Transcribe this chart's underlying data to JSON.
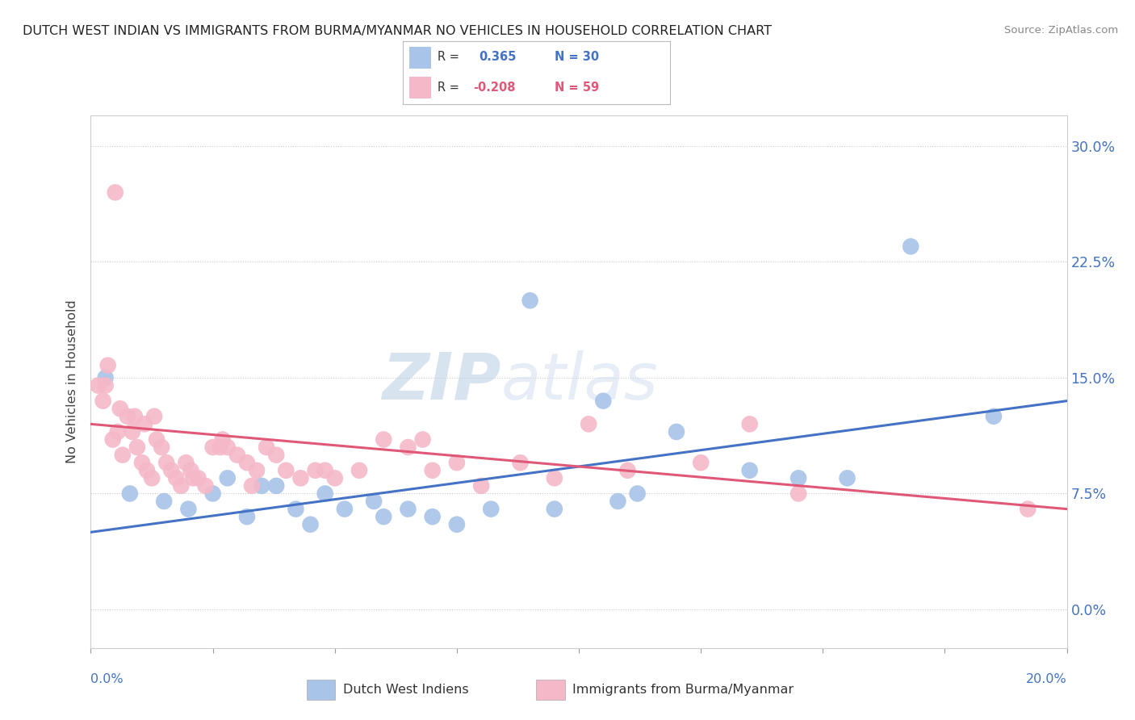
{
  "title": "DUTCH WEST INDIAN VS IMMIGRANTS FROM BURMA/MYANMAR NO VEHICLES IN HOUSEHOLD CORRELATION CHART",
  "source": "Source: ZipAtlas.com",
  "ylabel": "No Vehicles in Household",
  "xlim": [
    0.0,
    20.0
  ],
  "ylim": [
    -2.5,
    32.0
  ],
  "yticks": [
    0.0,
    7.5,
    15.0,
    22.5,
    30.0
  ],
  "xtick_positions": [
    0,
    2.5,
    5.0,
    7.5,
    10.0,
    12.5,
    15.0,
    17.5,
    20.0
  ],
  "blue_color": "#a8c4e8",
  "pink_color": "#f5b8c8",
  "line_blue": "#4472c4",
  "line_pink": "#e05878",
  "watermark_zip": "ZIP",
  "watermark_atlas": "atlas",
  "blue_scatter_x": [
    0.3,
    0.8,
    1.5,
    2.0,
    2.5,
    2.8,
    3.2,
    3.5,
    3.8,
    4.2,
    4.5,
    4.8,
    5.2,
    5.8,
    6.5,
    7.0,
    7.5,
    8.2,
    9.0,
    10.5,
    11.2,
    12.0,
    13.5,
    14.5,
    15.5,
    16.8,
    18.5,
    6.0,
    9.5,
    10.8
  ],
  "blue_scatter_y": [
    15.0,
    7.5,
    7.0,
    6.5,
    7.5,
    8.5,
    6.0,
    8.0,
    8.0,
    6.5,
    5.5,
    7.5,
    6.5,
    7.0,
    6.5,
    6.0,
    5.5,
    6.5,
    20.0,
    13.5,
    7.5,
    11.5,
    9.0,
    8.5,
    8.5,
    23.5,
    12.5,
    6.0,
    6.5,
    7.0
  ],
  "pink_scatter_x": [
    0.15,
    0.25,
    0.35,
    0.45,
    0.55,
    0.65,
    0.75,
    0.85,
    0.5,
    0.95,
    1.05,
    1.15,
    1.25,
    1.35,
    1.45,
    1.55,
    1.65,
    1.75,
    1.85,
    1.95,
    2.05,
    2.2,
    2.35,
    2.5,
    2.65,
    2.8,
    3.0,
    3.2,
    3.4,
    3.6,
    3.8,
    4.0,
    4.3,
    4.6,
    5.0,
    5.5,
    6.0,
    6.5,
    7.0,
    7.5,
    8.0,
    8.8,
    9.5,
    10.2,
    11.0,
    12.5,
    13.5,
    14.5,
    19.2,
    0.3,
    0.6,
    0.9,
    1.1,
    1.3,
    2.1,
    2.7,
    3.3,
    4.8,
    6.8
  ],
  "pink_scatter_y": [
    14.5,
    13.5,
    15.8,
    11.0,
    11.5,
    10.0,
    12.5,
    11.5,
    27.0,
    10.5,
    9.5,
    9.0,
    8.5,
    11.0,
    10.5,
    9.5,
    9.0,
    8.5,
    8.0,
    9.5,
    9.0,
    8.5,
    8.0,
    10.5,
    10.5,
    10.5,
    10.0,
    9.5,
    9.0,
    10.5,
    10.0,
    9.0,
    8.5,
    9.0,
    8.5,
    9.0,
    11.0,
    10.5,
    9.0,
    9.5,
    8.0,
    9.5,
    8.5,
    12.0,
    9.0,
    9.5,
    12.0,
    7.5,
    6.5,
    14.5,
    13.0,
    12.5,
    12.0,
    12.5,
    8.5,
    11.0,
    8.0,
    9.0,
    11.0
  ],
  "blue_dot_size": 220,
  "pink_dot_size": 220,
  "blue_line_x": [
    0.0,
    20.0
  ],
  "blue_line_y": [
    5.0,
    13.5
  ],
  "pink_line_x": [
    0.0,
    20.0
  ],
  "pink_line_y": [
    12.0,
    6.5
  ]
}
